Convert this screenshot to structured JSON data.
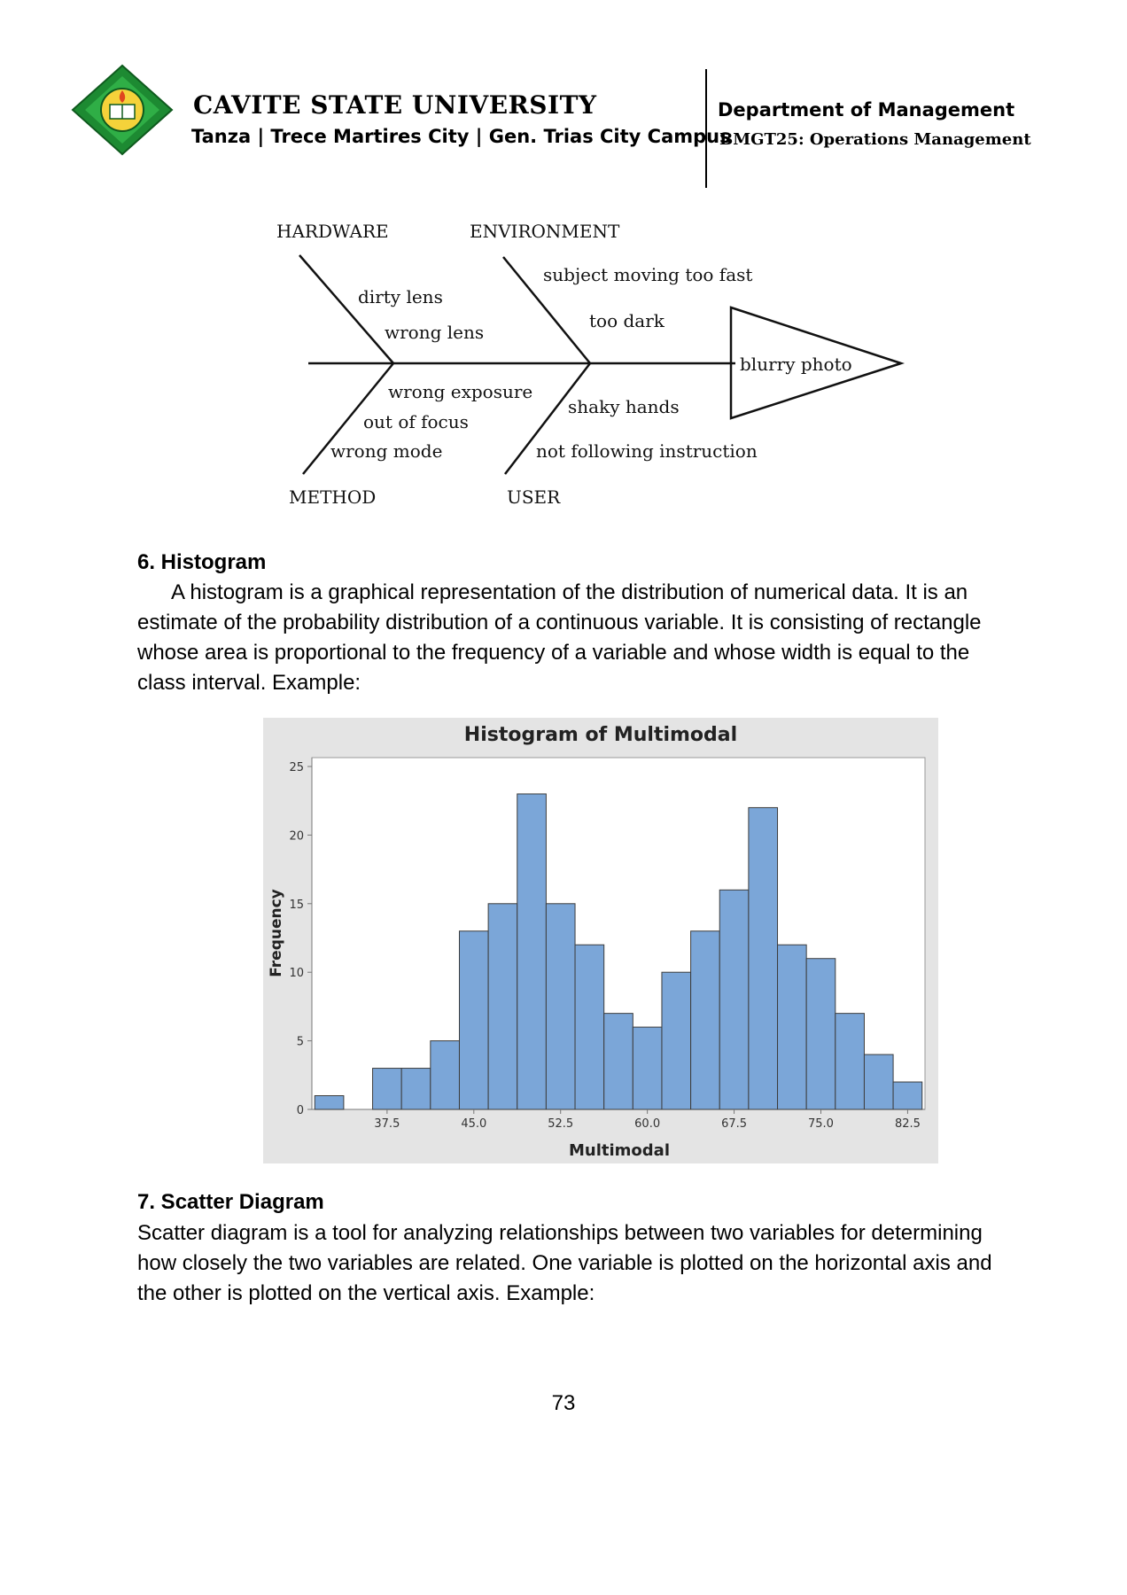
{
  "header": {
    "university": "CAVITE STATE UNIVERSITY",
    "campus": "Tanza | Trece Martires City | Gen. Trias City Campus",
    "department": "Department of Management",
    "course": "BMGT25: Operations Management"
  },
  "fishbone": {
    "categories": {
      "hardware": "HARDWARE",
      "environment": "ENVIRONMENT",
      "method": "METHOD",
      "user": "USER"
    },
    "causes": {
      "hardware": [
        "dirty lens",
        "wrong lens"
      ],
      "environment": [
        "subject moving too fast",
        "too dark"
      ],
      "method": [
        "wrong exposure",
        "out of focus",
        "wrong mode"
      ],
      "user": [
        "shaky hands",
        "not following instruction"
      ]
    },
    "effect": "blurry photo"
  },
  "section6": {
    "title": "6.  Histogram",
    "body": "A histogram is a graphical representation of the distribution of numerical data. It is an estimate of the probability distribution of a continuous variable. It is consisting of rectangle whose area is proportional to the frequency of a variable and whose width is equal to the class interval. Example:"
  },
  "chart_data": {
    "type": "bar",
    "title": "Histogram of Multimodal",
    "xlabel": "Multimodal",
    "ylabel": "Frequency",
    "bin_width": 2.5,
    "bin_centers": [
      32.5,
      35.0,
      37.5,
      40.0,
      42.5,
      45.0,
      47.5,
      50.0,
      52.5,
      55.0,
      57.5,
      60.0,
      62.5,
      65.0,
      67.5,
      70.0,
      72.5,
      75.0,
      77.5,
      80.0,
      82.5
    ],
    "values": [
      1,
      0,
      3,
      3,
      5,
      13,
      15,
      23,
      15,
      12,
      7,
      6,
      10,
      13,
      16,
      22,
      12,
      11,
      7,
      4,
      2
    ],
    "x_ticks": [
      "37.5",
      "45.0",
      "52.5",
      "60.0",
      "67.5",
      "75.0",
      "82.5"
    ],
    "y_ticks": [
      "0",
      "5",
      "10",
      "15",
      "20",
      "25"
    ],
    "ylim": [
      0,
      25
    ],
    "xlim": [
      31.0,
      84.0
    ],
    "grid": false,
    "colors": {
      "bar_fill": "#7ba6d8",
      "bar_stroke": "#3d3d3d",
      "background": "#e4e4e4",
      "plot_area": "#ffffff"
    }
  },
  "section7": {
    "title": "7.  Scatter Diagram",
    "body": "Scatter diagram is a tool for analyzing relationships between two variables for determining how closely the two variables are related. One variable is plotted on the horizontal axis and the other is plotted on the vertical axis. Example:"
  },
  "footer": {
    "page_number": "73"
  },
  "logo": {
    "icon": "university-seal-icon",
    "colors": {
      "outer": "#1d8a32",
      "inner": "#f5d23a"
    }
  }
}
